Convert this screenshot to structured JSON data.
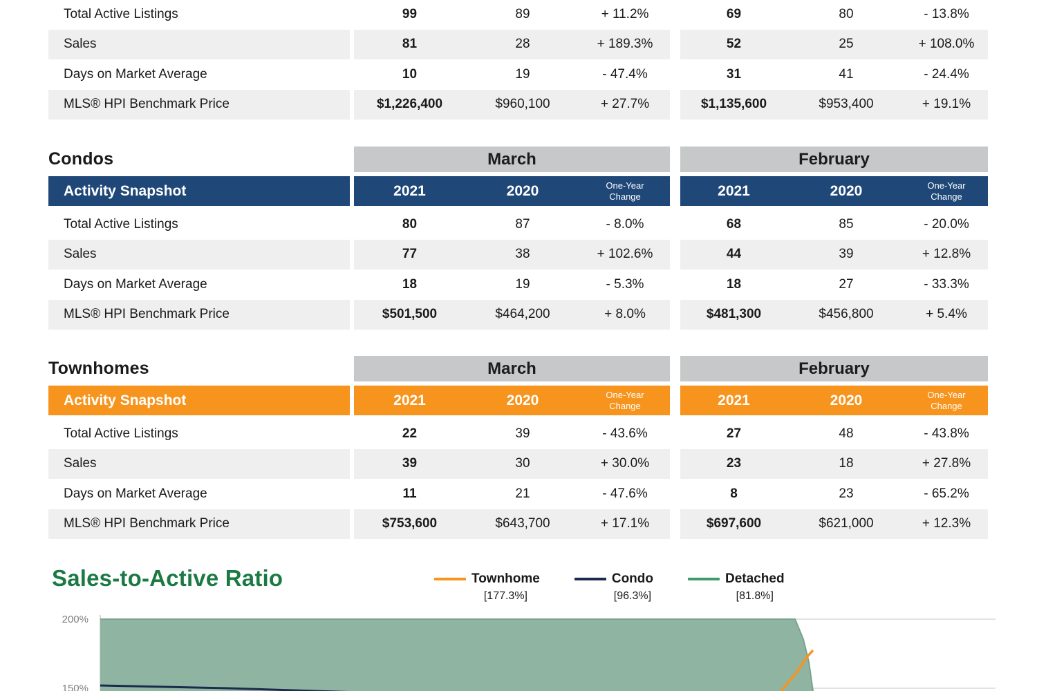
{
  "report": {
    "tables": [
      {
        "name": "detached",
        "title": null,
        "accent": null,
        "header": null,
        "rows": [
          {
            "label": "Total Active Listings",
            "cells": [
              "99",
              "89",
              "+ 11.2%",
              "69",
              "80",
              "- 13.8%"
            ]
          },
          {
            "label": "Sales",
            "cells": [
              "81",
              "28",
              "+ 189.3%",
              "52",
              "25",
              "+ 108.0%"
            ]
          },
          {
            "label": "Days on Market Average",
            "cells": [
              "10",
              "19",
              "- 47.4%",
              "31",
              "41",
              "- 24.4%"
            ]
          },
          {
            "label": "MLS® HPI Benchmark Price",
            "cells": [
              "$1,226,400",
              "$960,100",
              "+ 27.7%",
              "$1,135,600",
              "$953,400",
              "+ 19.1%"
            ]
          }
        ]
      },
      {
        "name": "condos",
        "title": "Condos",
        "accent": "#1F4777",
        "header": {
          "months": [
            "March",
            "February"
          ],
          "snapshot": "Activity Snapshot",
          "year_current": "2021",
          "year_prior": "2020",
          "change": "One-Year\nChange"
        },
        "rows": [
          {
            "label": "Total Active Listings",
            "cells": [
              "80",
              "87",
              "- 8.0%",
              "68",
              "85",
              "- 20.0%"
            ]
          },
          {
            "label": "Sales",
            "cells": [
              "77",
              "38",
              "+ 102.6%",
              "44",
              "39",
              "+ 12.8%"
            ]
          },
          {
            "label": "Days on Market Average",
            "cells": [
              "18",
              "19",
              "- 5.3%",
              "18",
              "27",
              "- 33.3%"
            ]
          },
          {
            "label": "MLS® HPI Benchmark Price",
            "cells": [
              "$501,500",
              "$464,200",
              "+ 8.0%",
              "$481,300",
              "$456,800",
              "+ 5.4%"
            ]
          }
        ]
      },
      {
        "name": "townhomes",
        "title": "Townhomes",
        "accent": "#F7941D",
        "header": {
          "months": [
            "March",
            "February"
          ],
          "snapshot": "Activity Snapshot",
          "year_current": "2021",
          "year_prior": "2020",
          "change": "One-Year\nChange"
        },
        "rows": [
          {
            "label": "Total Active Listings",
            "cells": [
              "22",
              "39",
              "- 43.6%",
              "27",
              "48",
              "- 43.8%"
            ]
          },
          {
            "label": "Sales",
            "cells": [
              "39",
              "30",
              "+ 30.0%",
              "23",
              "18",
              "+ 27.8%"
            ]
          },
          {
            "label": "Days on Market Average",
            "cells": [
              "11",
              "21",
              "- 47.6%",
              "8",
              "23",
              "- 65.2%"
            ]
          },
          {
            "label": "MLS® HPI Benchmark Price",
            "cells": [
              "$753,600",
              "$643,700",
              "+ 17.1%",
              "$697,600",
              "$621,000",
              "+ 12.3%"
            ]
          }
        ]
      }
    ]
  },
  "ratio_section": {
    "title": "Sales-to-Active Ratio",
    "title_color": "#1B7A44",
    "legend": [
      {
        "name": "Townhome",
        "value": "[177.3%]",
        "color": "#F7941D"
      },
      {
        "name": "Condo",
        "value": "[96.3%]",
        "color": "#1B2B4D"
      },
      {
        "name": "Detached",
        "value": "[81.8%]",
        "color": "#3E9B6E"
      }
    ]
  },
  "chart_data": {
    "type": "area",
    "title": "Sales-to-Active Ratio",
    "y_axis_format": "percent",
    "y_ticks_visible": [
      "200%",
      "150%"
    ],
    "legend_position": "top",
    "grid": true,
    "series": [
      {
        "name": "Townhome",
        "latest_value_pct": 177.3,
        "color": "#F7941D",
        "style": "line"
      },
      {
        "name": "Condo",
        "latest_value_pct": 96.3,
        "color": "#1B2B4D",
        "style": "line"
      },
      {
        "name": "Detached",
        "latest_value_pct": 81.8,
        "color": "#3E9B6E",
        "fill": "#8FB4A1",
        "style": "area"
      }
    ]
  },
  "colors": {
    "condo_accent": "#1F4777",
    "townhome_accent": "#F7941D",
    "month_bar_gray": "#C7C8C9",
    "row_stripe": "#EFEFEF",
    "heading_green": "#1B7A44",
    "area_fill": "#8FB4A1"
  }
}
